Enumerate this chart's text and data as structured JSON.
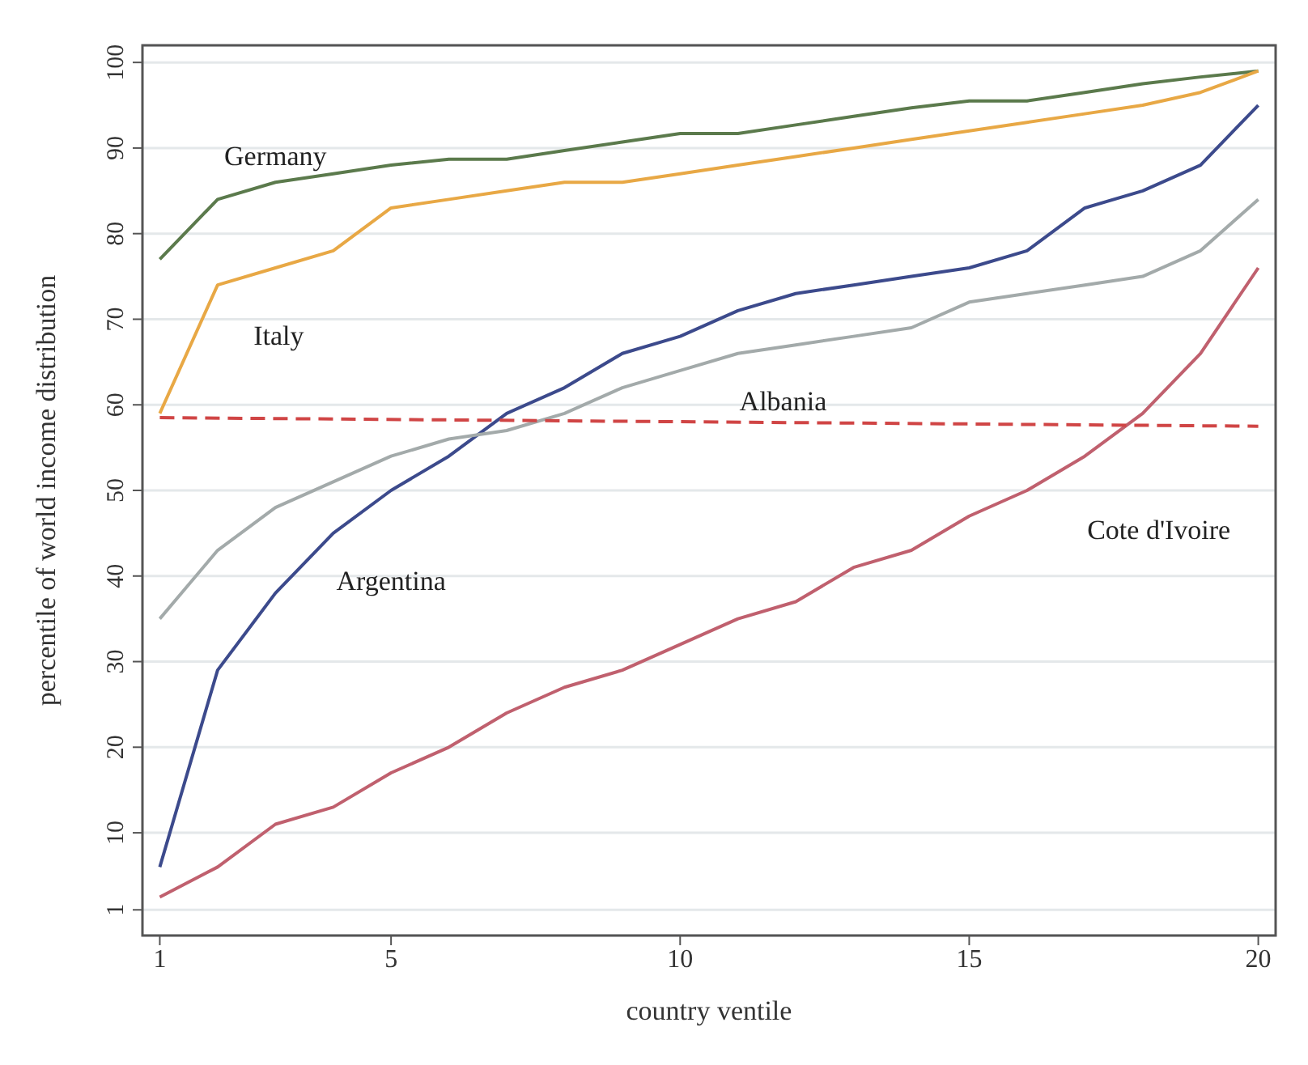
{
  "chart_data": {
    "type": "line",
    "xlabel": "country ventile",
    "ylabel": "percentile of world income distribution",
    "x": [
      1,
      2,
      3,
      4,
      5,
      6,
      7,
      8,
      9,
      10,
      11,
      12,
      13,
      14,
      15,
      16,
      17,
      18,
      19,
      20
    ],
    "series": [
      {
        "name": "Germany",
        "color": "#5b7a4c",
        "values": [
          77,
          84,
          86,
          87,
          88,
          88.7,
          88.7,
          89.7,
          90.7,
          91.7,
          91.7,
          92.7,
          93.7,
          94.7,
          95.5,
          95.5,
          96.5,
          97.5,
          98.3,
          99
        ]
      },
      {
        "name": "Italy",
        "color": "#e8a845",
        "values": [
          59,
          74,
          76,
          78,
          83,
          84,
          85,
          86,
          86,
          87,
          88,
          89,
          90,
          91,
          92,
          93,
          94,
          95,
          96.5,
          99
        ]
      },
      {
        "name": "Argentina",
        "color": "#3c4a8c",
        "values": [
          6,
          29,
          38,
          45,
          50,
          54,
          59,
          62,
          66,
          68,
          71,
          73,
          74,
          75,
          76,
          78,
          83,
          85,
          88,
          95
        ]
      },
      {
        "color": "#a3aaaa",
        "values": [
          35,
          43,
          48,
          51,
          54,
          56,
          57,
          59,
          62,
          64,
          66,
          67,
          68,
          69,
          72,
          73,
          74,
          75,
          78,
          84
        ]
      },
      {
        "name": "Cote d'Ivoire",
        "color": "#c0606e",
        "values": [
          2.5,
          6,
          11,
          13,
          17,
          20,
          24,
          27,
          29,
          32,
          35,
          37,
          41,
          43,
          47,
          50,
          54,
          59,
          66,
          76
        ]
      },
      {
        "name": "Albania",
        "color": "#d04545",
        "line_style": "dashed",
        "x": [
          1,
          20
        ],
        "values": [
          58.5,
          57.5
        ]
      }
    ],
    "xlim": [
      0.7,
      20.3
    ],
    "xticks": [
      1,
      5,
      10,
      15,
      20
    ],
    "ylim": [
      -2,
      102
    ],
    "yticks": [
      1,
      10,
      20,
      30,
      40,
      50,
      60,
      70,
      80,
      90,
      100
    ],
    "grid": "y",
    "legend": false,
    "marker": "none"
  }
}
